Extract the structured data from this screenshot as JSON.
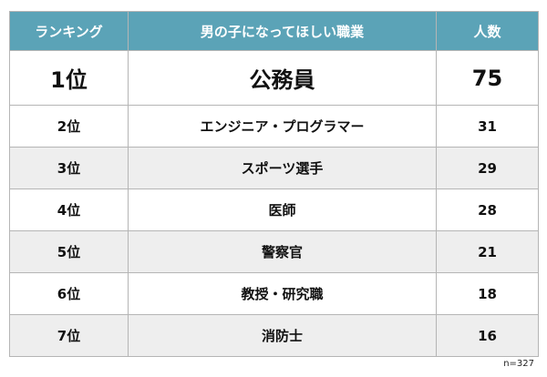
{
  "table": {
    "headers": [
      "ランキング",
      "男の子になってほしい職業",
      "人数"
    ],
    "rows": [
      [
        "1位",
        "公務員",
        75
      ],
      [
        "2位",
        "エンジニア・プログラマー",
        31
      ],
      [
        "3位",
        "スポーツ選手",
        29
      ],
      [
        "4位",
        "医師",
        28
      ],
      [
        "5位",
        "警察官",
        21
      ],
      [
        "6位",
        "教授・研究職",
        18
      ],
      [
        "7位",
        "消防士",
        16
      ]
    ]
  },
  "footnote": "n=327"
}
